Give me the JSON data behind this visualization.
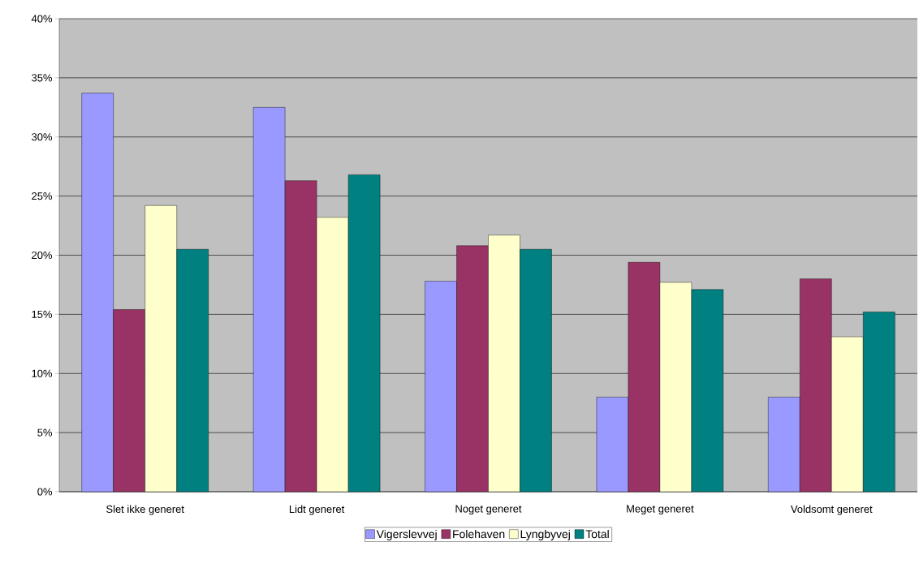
{
  "chart_data": {
    "type": "bar",
    "categories": [
      "Slet ikke generet",
      "Lidt generet",
      "Noget generet",
      "Meget generet",
      "Voldsomt generet"
    ],
    "series": [
      {
        "name": "Vigerslevvej",
        "color": "#9999ff",
        "values": [
          33.7,
          32.5,
          17.8,
          8.0,
          8.0
        ]
      },
      {
        "name": "Folehaven",
        "color": "#993366",
        "values": [
          15.4,
          26.3,
          20.8,
          19.4,
          18.0
        ]
      },
      {
        "name": "Lyngbyvej",
        "color": "#ffffcc",
        "values": [
          24.2,
          23.2,
          21.7,
          17.7,
          13.1
        ]
      },
      {
        "name": "Total",
        "color": "#008080",
        "values": [
          20.5,
          26.8,
          20.5,
          17.1,
          15.2
        ]
      }
    ],
    "ylim": [
      0,
      40
    ],
    "yticks": [
      {
        "value": 0,
        "label": "0%"
      },
      {
        "value": 5,
        "label": "5%"
      },
      {
        "value": 10,
        "label": "10%"
      },
      {
        "value": 15,
        "label": "15%"
      },
      {
        "value": 20,
        "label": "20%"
      },
      {
        "value": 25,
        "label": "25%"
      },
      {
        "value": 30,
        "label": "30%"
      },
      {
        "value": 35,
        "label": "35%"
      },
      {
        "value": 40,
        "label": "40%"
      }
    ],
    "grid": "y",
    "legend": "bottom"
  }
}
